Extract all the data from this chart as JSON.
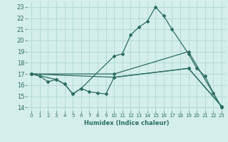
{
  "title": "",
  "xlabel": "Humidex (Indice chaleur)",
  "ylabel": "",
  "bg_color": "#d4eeeb",
  "grid_color": "#aed8d3",
  "line_color": "#2e6e64",
  "xlim": [
    -0.5,
    23.5
  ],
  "ylim": [
    13.7,
    23.5
  ],
  "yticks": [
    14,
    15,
    16,
    17,
    18,
    19,
    20,
    21,
    22,
    23
  ],
  "xticks": [
    0,
    1,
    2,
    3,
    4,
    5,
    6,
    7,
    8,
    9,
    10,
    11,
    12,
    13,
    14,
    15,
    16,
    17,
    18,
    19,
    20,
    21,
    22,
    23
  ],
  "lines": [
    {
      "x": [
        0,
        1,
        2,
        3,
        4,
        5,
        6,
        10,
        11,
        12,
        13,
        14,
        15,
        16,
        17,
        19,
        20,
        21,
        22,
        23
      ],
      "y": [
        17.0,
        16.8,
        16.3,
        16.5,
        16.1,
        15.2,
        15.7,
        18.6,
        18.8,
        20.5,
        21.2,
        21.7,
        23.0,
        22.2,
        21.0,
        18.8,
        17.5,
        16.8,
        15.3,
        14.0
      ]
    },
    {
      "x": [
        0,
        10,
        19,
        23
      ],
      "y": [
        17.0,
        17.0,
        19.0,
        14.0
      ]
    },
    {
      "x": [
        0,
        10,
        19,
        23
      ],
      "y": [
        17.0,
        16.7,
        17.5,
        14.1
      ]
    },
    {
      "x": [
        0,
        3,
        4,
        5,
        6,
        7,
        8,
        9,
        10,
        19,
        23
      ],
      "y": [
        17.0,
        16.5,
        16.1,
        15.2,
        15.7,
        15.4,
        15.3,
        15.2,
        16.7,
        17.5,
        14.1
      ]
    }
  ]
}
